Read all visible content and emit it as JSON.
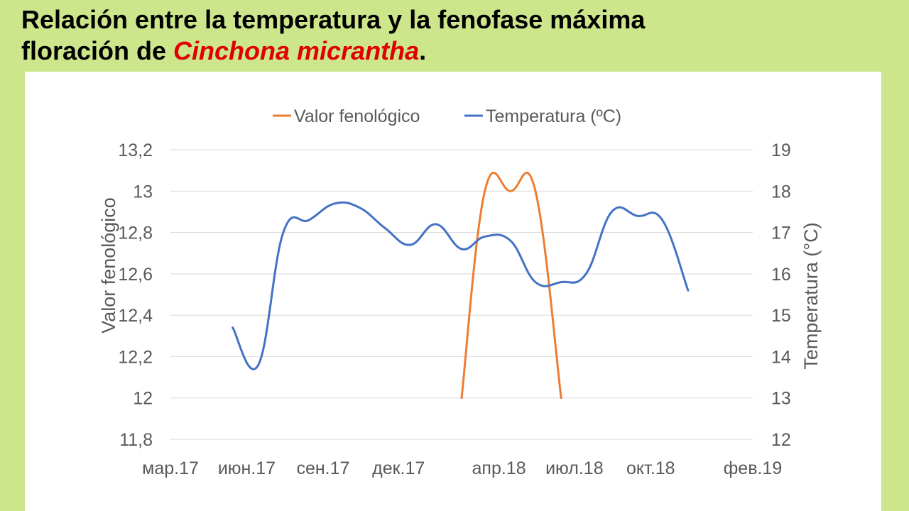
{
  "slide": {
    "title_line1": "Relación entre la temperatura y la fenofase máxima",
    "title_line2_prefix": "floración de ",
    "title_species": "Cinchona micrantha",
    "title_period": "."
  },
  "colors": {
    "background": "#cde68b",
    "phenology_series": "#ed7d31",
    "temperature_series": "#4472c4",
    "species_text": "#e00000"
  },
  "chart_data": {
    "type": "line",
    "title": "",
    "legend_position": "top",
    "grid": true,
    "x_axis": {
      "type": "date",
      "range": [
        "2017-03-01",
        "2019-02-01"
      ],
      "tick_dates": [
        "2017-03-01",
        "2017-06-01",
        "2017-09-01",
        "2017-12-01",
        "2018-04-01",
        "2018-07-01",
        "2018-10-01",
        "2019-02-01"
      ],
      "tick_labels": [
        "мар.17",
        "июн.17",
        "сен.17",
        "дек.17",
        "апр.18",
        "июл.18",
        "окт.18",
        "фев.19"
      ]
    },
    "y_left": {
      "label": "Valor fenológico",
      "range": [
        11.8,
        13.2
      ],
      "ticks": [
        11.8,
        12,
        12.2,
        12.4,
        12.6,
        12.8,
        13,
        13.2
      ],
      "tick_labels": [
        "11,8",
        "12",
        "12,2",
        "12,4",
        "12,6",
        "12,8",
        "13",
        "13,2"
      ]
    },
    "y_right": {
      "label": "Temperatura (°C)",
      "range": [
        12,
        19
      ],
      "ticks": [
        12,
        13,
        14,
        15,
        16,
        17,
        18,
        19
      ],
      "tick_labels": [
        "12",
        "13",
        "14",
        "15",
        "16",
        "17",
        "18",
        "19"
      ]
    },
    "series": [
      {
        "name": "Valor fenológico",
        "axis": "left",
        "color": "#ed7d31",
        "points": [
          [
            "2018-02-15",
            12.0
          ],
          [
            "2018-03-15",
            13.0
          ],
          [
            "2018-04-15",
            13.0
          ],
          [
            "2018-05-15",
            13.0
          ],
          [
            "2018-06-15",
            12.0
          ]
        ]
      },
      {
        "name": "Temperatura (ºC)",
        "axis": "right",
        "color": "#4472c4",
        "points": [
          [
            "2017-05-15",
            14.7
          ],
          [
            "2017-06-15",
            13.8
          ],
          [
            "2017-07-15",
            17.0
          ],
          [
            "2017-08-15",
            17.3
          ],
          [
            "2017-09-15",
            17.7
          ],
          [
            "2017-10-15",
            17.6
          ],
          [
            "2017-11-15",
            17.1
          ],
          [
            "2017-12-15",
            16.7
          ],
          [
            "2018-01-15",
            17.2
          ],
          [
            "2018-02-15",
            16.6
          ],
          [
            "2018-03-15",
            16.9
          ],
          [
            "2018-04-15",
            16.8
          ],
          [
            "2018-05-15",
            15.8
          ],
          [
            "2018-06-15",
            15.8
          ],
          [
            "2018-07-15",
            16.0
          ],
          [
            "2018-08-15",
            17.5
          ],
          [
            "2018-09-15",
            17.4
          ],
          [
            "2018-10-15",
            17.3
          ],
          [
            "2018-11-15",
            15.6
          ]
        ]
      }
    ]
  }
}
